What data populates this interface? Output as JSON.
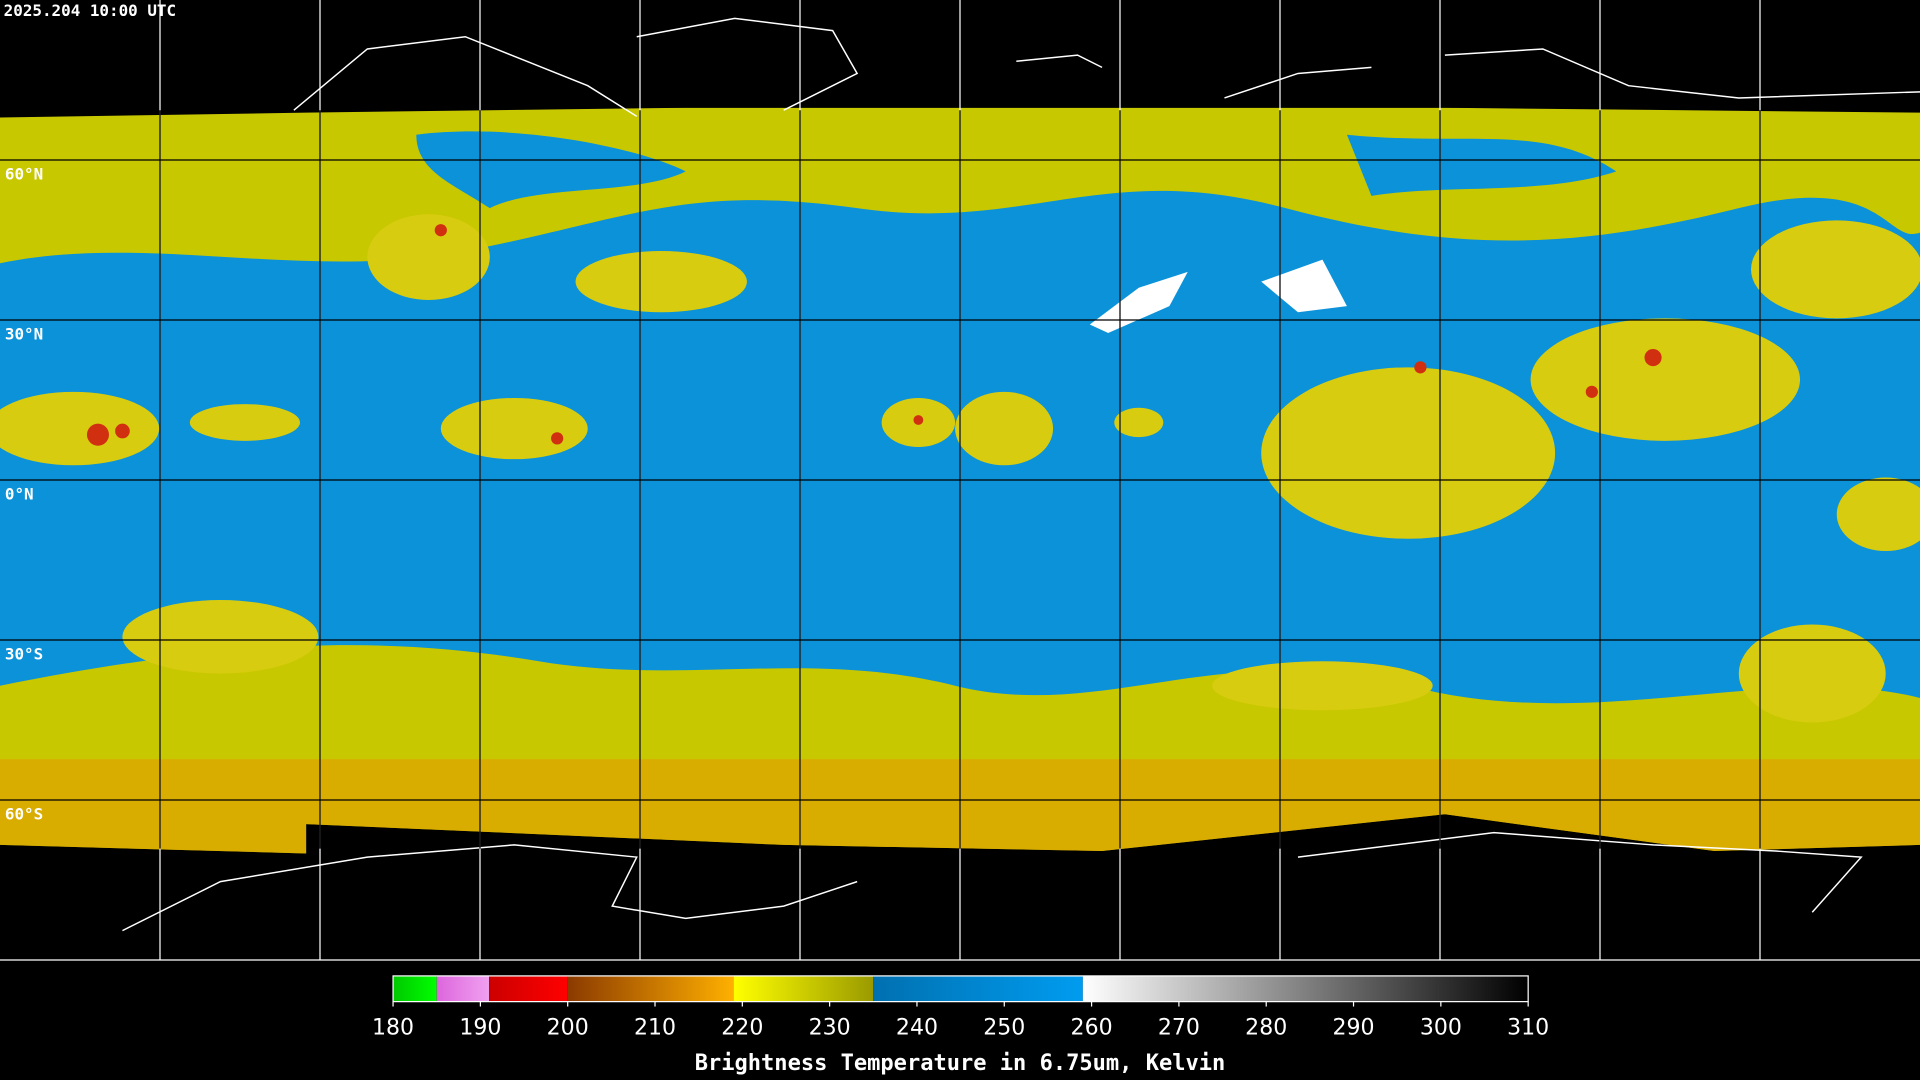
{
  "header": {
    "timestamp": "2025.204 10:00 UTC"
  },
  "map": {
    "latitude_labels": [
      "60°N",
      "30°N",
      "0°N",
      "30°S",
      "60°S"
    ]
  },
  "colorbar": {
    "range": [
      180,
      310
    ],
    "ticks": [
      180,
      190,
      200,
      210,
      220,
      230,
      240,
      250,
      260,
      270,
      280,
      290,
      300,
      310
    ],
    "segments": [
      {
        "from": 180,
        "to": 185,
        "start_color": "#00c800",
        "end_color": "#00ff00"
      },
      {
        "from": 185,
        "to": 191,
        "start_color": "#dd66dd",
        "end_color": "#f0a0f0"
      },
      {
        "from": 191,
        "to": 200,
        "start_color": "#cc0000",
        "end_color": "#ff0000"
      },
      {
        "from": 200,
        "to": 219,
        "start_color": "#8b3a00",
        "end_color": "#ffb000"
      },
      {
        "from": 219,
        "to": 235,
        "start_color": "#ffff00",
        "end_color": "#9a9a00"
      },
      {
        "from": 235,
        "to": 259,
        "start_color": "#0070b0",
        "end_color": "#009cf0"
      },
      {
        "from": 259,
        "to": 310,
        "start_color": "#ffffff",
        "end_color": "#000000"
      }
    ],
    "label": "Brightness Temperature in 6.75um, Kelvin"
  }
}
